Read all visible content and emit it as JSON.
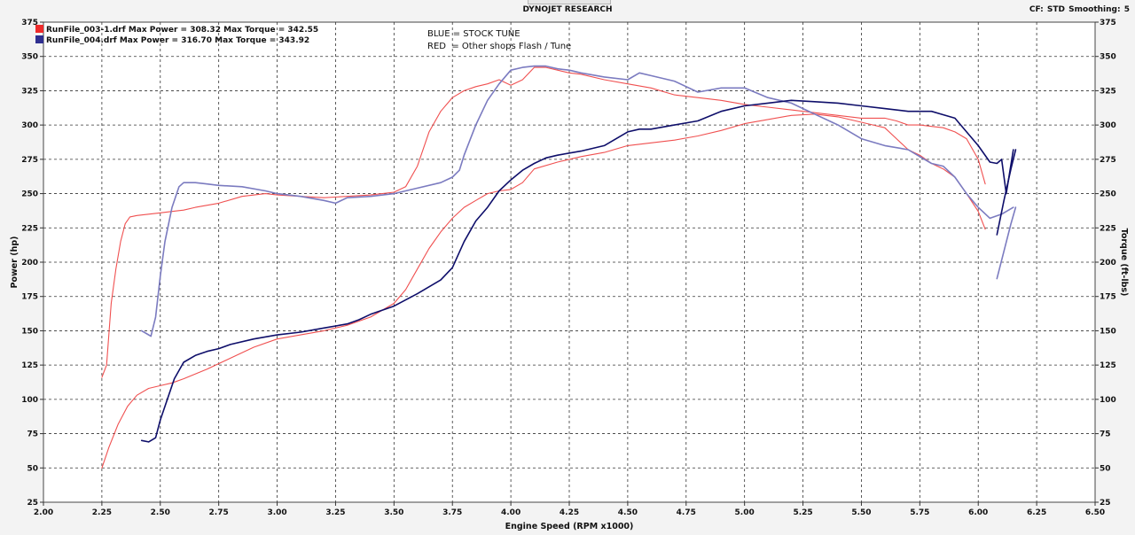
{
  "header": {
    "title": "DYNOJET RESEARCH",
    "cf_label": "CF: STD",
    "smoothing_label": "Smoothing: 5"
  },
  "legend": [
    {
      "file": "RunFile_003-1.drf",
      "max_power": "Max Power = 308.32",
      "max_torque": "Max Torque = 342.55",
      "color": "#ee2b2b"
    },
    {
      "file": "RunFile_004.drf",
      "max_power": "Max Power = 316.70",
      "max_torque": "Max Torque = 343.92",
      "color": "#2f2f90"
    }
  ],
  "notes": {
    "blue": "BLUE = STOCK TUNE",
    "red": "RED  = Other shops Flash / Tune"
  },
  "chart_data": {
    "type": "line",
    "title": "DYNOJET RESEARCH",
    "xlabel": "Engine Speed (RPM x1000)",
    "ylabel_left": "Power (hp)",
    "ylabel_right": "Torque (ft-lbs)",
    "xlim": [
      2.0,
      6.5
    ],
    "ylim": [
      25,
      375
    ],
    "x_ticks": [
      "2.00",
      "2.25",
      "2.50",
      "2.75",
      "3.00",
      "3.25",
      "3.50",
      "3.75",
      "4.00",
      "4.25",
      "4.50",
      "4.75",
      "5.00",
      "5.25",
      "5.50",
      "5.75",
      "6.00",
      "6.25",
      "6.50"
    ],
    "y_ticks": [
      "25",
      "50",
      "75",
      "100",
      "125",
      "150",
      "175",
      "200",
      "225",
      "250",
      "275",
      "300",
      "325",
      "350",
      "375"
    ],
    "grid": true,
    "series": [
      {
        "name": "RunFile_003-1.drf",
        "measure": "Torque",
        "color": "#f05050",
        "width": 1.1,
        "x": [
          2.25,
          2.27,
          2.29,
          2.31,
          2.33,
          2.35,
          2.37,
          2.4,
          2.45,
          2.5,
          2.55,
          2.6,
          2.65,
          2.75,
          2.85,
          2.95,
          3.0,
          3.1,
          3.2,
          3.3,
          3.4,
          3.5,
          3.55,
          3.6,
          3.65,
          3.7,
          3.75,
          3.8,
          3.85,
          3.9,
          3.95,
          4.0,
          4.05,
          4.1,
          4.15,
          4.2,
          4.25,
          4.3,
          4.4,
          4.5,
          4.6,
          4.7,
          4.8,
          4.9,
          5.0,
          5.1,
          5.2,
          5.3,
          5.4,
          5.5,
          5.6,
          5.65,
          5.7,
          5.75,
          5.8,
          5.85,
          5.9,
          5.95,
          6.0,
          6.03
        ],
        "y": [
          116,
          125,
          170,
          195,
          215,
          228,
          233,
          234,
          235,
          236,
          237,
          238,
          240,
          243,
          248,
          250,
          249,
          248,
          247,
          248,
          249,
          251,
          255,
          270,
          295,
          310,
          320,
          325,
          328,
          330,
          333,
          329,
          333,
          342,
          342,
          340,
          338,
          337,
          333,
          330,
          327,
          322,
          320,
          318,
          315,
          313,
          311,
          309,
          307,
          305,
          305,
          303,
          300,
          300,
          299,
          298,
          295,
          290,
          275,
          257
        ]
      },
      {
        "name": "RunFile_003-1.drf",
        "measure": "Power",
        "color": "#f05050",
        "width": 1.1,
        "x": [
          2.25,
          2.28,
          2.32,
          2.36,
          2.4,
          2.45,
          2.5,
          2.55,
          2.6,
          2.7,
          2.8,
          2.9,
          3.0,
          3.1,
          3.2,
          3.3,
          3.4,
          3.5,
          3.55,
          3.6,
          3.65,
          3.7,
          3.75,
          3.8,
          3.85,
          3.9,
          3.95,
          4.0,
          4.05,
          4.1,
          4.2,
          4.3,
          4.4,
          4.5,
          4.6,
          4.7,
          4.8,
          4.9,
          5.0,
          5.1,
          5.2,
          5.3,
          5.4,
          5.5,
          5.55,
          5.6,
          5.65,
          5.7,
          5.75,
          5.8,
          5.85,
          5.9,
          5.95,
          6.0,
          6.03
        ],
        "y": [
          50,
          65,
          82,
          95,
          103,
          108,
          110,
          112,
          115,
          122,
          130,
          138,
          144,
          147,
          150,
          154,
          160,
          170,
          180,
          195,
          210,
          222,
          232,
          240,
          245,
          250,
          252,
          253,
          258,
          268,
          273,
          277,
          280,
          285,
          287,
          289,
          292,
          296,
          301,
          304,
          307,
          308,
          306,
          302,
          300,
          298,
          290,
          282,
          278,
          272,
          268,
          262,
          250,
          237,
          224
        ]
      },
      {
        "name": "RunFile_004.drf",
        "measure": "Torque",
        "color": "#7b7bc0",
        "width": 1.6,
        "x": [
          2.42,
          2.44,
          2.46,
          2.48,
          2.5,
          2.52,
          2.55,
          2.58,
          2.6,
          2.65,
          2.7,
          2.75,
          2.85,
          2.95,
          3.0,
          3.1,
          3.2,
          3.25,
          3.3,
          3.4,
          3.5,
          3.55,
          3.6,
          3.7,
          3.75,
          3.78,
          3.8,
          3.85,
          3.9,
          3.95,
          4.0,
          4.05,
          4.1,
          4.15,
          4.2,
          4.25,
          4.3,
          4.4,
          4.5,
          4.55,
          4.6,
          4.7,
          4.8,
          4.9,
          5.0,
          5.1,
          5.2,
          5.3,
          5.4,
          5.5,
          5.6,
          5.7,
          5.75,
          5.8,
          5.85,
          5.9,
          5.95,
          6.0,
          6.05,
          6.1,
          6.15
        ],
        "y": [
          150,
          148,
          146,
          160,
          190,
          215,
          240,
          255,
          258,
          258,
          257,
          256,
          255,
          252,
          250,
          248,
          245,
          243,
          247,
          248,
          250,
          252,
          254,
          258,
          262,
          267,
          278,
          300,
          318,
          330,
          340,
          342,
          343,
          343,
          341,
          340,
          338,
          335,
          333,
          338,
          336,
          332,
          324,
          327,
          327,
          320,
          316,
          308,
          300,
          290,
          285,
          282,
          277,
          272,
          270,
          262,
          250,
          240,
          232,
          235,
          240
        ]
      },
      {
        "name": "RunFile_004.drf",
        "measure": "Power",
        "color": "#0e0e6a",
        "width": 1.6,
        "x": [
          2.42,
          2.45,
          2.48,
          2.5,
          2.53,
          2.56,
          2.6,
          2.65,
          2.7,
          2.75,
          2.8,
          2.9,
          3.0,
          3.1,
          3.2,
          3.3,
          3.35,
          3.4,
          3.5,
          3.6,
          3.7,
          3.75,
          3.8,
          3.85,
          3.9,
          3.95,
          4.0,
          4.05,
          4.1,
          4.15,
          4.2,
          4.3,
          4.4,
          4.5,
          4.55,
          4.6,
          4.7,
          4.8,
          4.9,
          5.0,
          5.1,
          5.2,
          5.3,
          5.4,
          5.5,
          5.6,
          5.7,
          5.8,
          5.9,
          6.0,
          6.05,
          6.08,
          6.1,
          6.12,
          6.15
        ],
        "y": [
          70,
          69,
          72,
          85,
          100,
          115,
          127,
          132,
          135,
          137,
          140,
          144,
          147,
          149,
          152,
          155,
          158,
          162,
          168,
          177,
          187,
          196,
          215,
          230,
          240,
          252,
          260,
          267,
          272,
          276,
          278,
          281,
          285,
          295,
          297,
          297,
          300,
          303,
          310,
          314,
          316,
          318,
          317,
          316,
          314,
          312,
          310,
          310,
          305,
          285,
          273,
          272,
          275,
          250,
          282
        ]
      },
      {
        "name": "RunFile_004.drf",
        "measure": "Torque-tail",
        "color": "#7b7bc0",
        "width": 1.6,
        "x": [
          6.08,
          6.11,
          6.14,
          6.16
        ],
        "y": [
          188,
          208,
          228,
          240
        ]
      },
      {
        "name": "RunFile_004.drf",
        "measure": "Power-tail",
        "color": "#0e0e6a",
        "width": 1.6,
        "x": [
          6.08,
          6.11,
          6.14,
          6.16
        ],
        "y": [
          220,
          245,
          268,
          282
        ]
      }
    ]
  }
}
